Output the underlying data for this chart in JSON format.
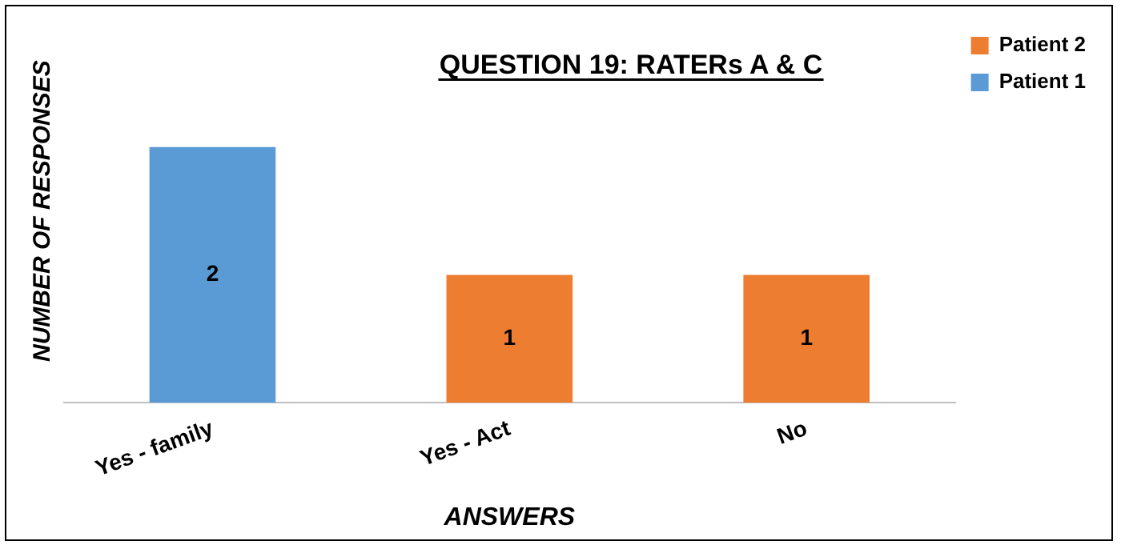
{
  "chart_data": {
    "type": "bar",
    "title": "QUESTION 19: RATERs A & C",
    "xlabel": "ANSWERS",
    "ylabel": "NUMBER OF RESPONSES",
    "categories": [
      "Yes - family",
      "Yes - Act",
      "No"
    ],
    "series": [
      {
        "name": "Patient 1",
        "color": "#5b9bd5",
        "values": [
          2,
          null,
          null
        ]
      },
      {
        "name": "Patient 2",
        "color": "#ed7d31",
        "values": [
          null,
          1,
          1
        ]
      }
    ],
    "stacked": true,
    "data_labels": true,
    "legend": "top right",
    "grid": false,
    "tick_labels": "x"
  }
}
